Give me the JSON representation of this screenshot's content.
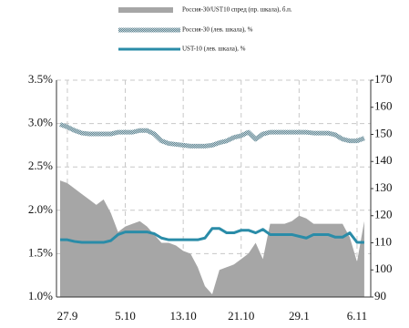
{
  "chart_data": {
    "type": "line",
    "categories": [
      null,
      "27.9",
      null,
      null,
      null,
      null,
      null,
      null,
      null,
      "5.10",
      null,
      null,
      null,
      null,
      null,
      null,
      null,
      "13.10",
      null,
      null,
      null,
      null,
      null,
      null,
      null,
      "21.10",
      null,
      null,
      null,
      null,
      null,
      null,
      null,
      "29.1",
      null,
      null,
      null,
      null,
      null,
      null,
      null,
      "6.11",
      null
    ],
    "series": [
      {
        "name": "Россия-30/UST10 спред (пр. шкала), б.п.",
        "type": "area",
        "axis": "y2",
        "color": "#a6a6a6",
        "values": [
          133,
          132,
          130,
          128,
          126,
          124,
          126,
          121,
          114,
          116,
          117,
          118,
          116,
          113,
          110,
          110,
          109,
          107,
          106,
          101,
          94,
          91,
          100,
          101,
          102,
          104,
          106,
          110,
          104,
          117,
          117,
          117,
          118,
          120,
          119,
          117,
          117,
          117,
          117,
          117,
          112,
          103,
          118
        ]
      },
      {
        "name": "Россия-30 (лев. шкала), %",
        "type": "line",
        "color": "#7f9ea9",
        "values": [
          2.99,
          2.96,
          2.92,
          2.89,
          2.88,
          2.88,
          2.88,
          2.88,
          2.9,
          2.9,
          2.9,
          2.92,
          2.92,
          2.88,
          2.8,
          2.77,
          2.76,
          2.75,
          2.74,
          2.74,
          2.74,
          2.75,
          2.78,
          2.8,
          2.84,
          2.86,
          2.9,
          2.82,
          2.88,
          2.9,
          2.9,
          2.9,
          2.9,
          2.9,
          2.9,
          2.89,
          2.89,
          2.89,
          2.87,
          2.82,
          2.8,
          2.8,
          2.83
        ]
      },
      {
        "name": "UST-10 (лев. шкала), %",
        "type": "line",
        "color": "#2a8ca8",
        "values": [
          1.66,
          1.66,
          1.64,
          1.63,
          1.63,
          1.63,
          1.63,
          1.65,
          1.72,
          1.75,
          1.75,
          1.75,
          1.75,
          1.73,
          1.68,
          1.66,
          1.66,
          1.66,
          1.66,
          1.66,
          1.68,
          1.79,
          1.79,
          1.74,
          1.74,
          1.77,
          1.77,
          1.74,
          1.78,
          1.72,
          1.72,
          1.72,
          1.72,
          1.7,
          1.68,
          1.72,
          1.72,
          1.72,
          1.69,
          1.69,
          1.74,
          1.63,
          1.63
        ]
      }
    ],
    "ylim": [
      1.0,
      3.5
    ],
    "yticks": [
      {
        "value": 1.0,
        "label": "1.0%"
      },
      {
        "value": 1.5,
        "label": "1.5%"
      },
      {
        "value": 2.0,
        "label": "2.0%"
      },
      {
        "value": 2.5,
        "label": "2.5%"
      },
      {
        "value": 3.0,
        "label": "3.0%"
      },
      {
        "value": 3.5,
        "label": "3.5%"
      }
    ],
    "y2lim": [
      90,
      170
    ],
    "y2ticks": [
      90,
      100,
      110,
      120,
      130,
      140,
      150,
      160,
      170
    ],
    "grid": true
  }
}
